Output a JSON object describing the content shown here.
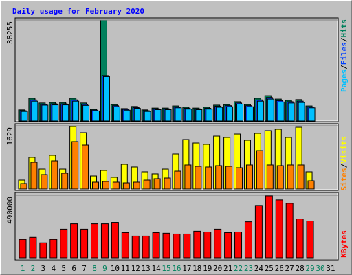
{
  "chart_data": [
    {
      "type": "bar",
      "title": "Daily usage for February 2020",
      "ylim": [
        0,
        38255
      ],
      "yticks": [
        38255
      ],
      "legend_separator": "/",
      "series": [
        {
          "name": "Hits",
          "color": "#00805c",
          "values": [
            4200,
            8600,
            6800,
            7000,
            7000,
            8600,
            6800,
            4400,
            38255,
            6200,
            4700,
            5500,
            4200,
            4900,
            4900,
            5700,
            5200,
            4900,
            5200,
            6000,
            6200,
            7300,
            6200,
            8600,
            9600,
            8300,
            7800,
            8100,
            5700,
            null,
            null
          ]
        },
        {
          "name": "Files",
          "color": "#0040ff",
          "values": [
            3900,
            8000,
            6300,
            6500,
            6500,
            8000,
            6300,
            4100,
            17200,
            5800,
            4400,
            5100,
            3900,
            4600,
            4600,
            5300,
            4800,
            4600,
            4800,
            5600,
            5800,
            6800,
            5800,
            8000,
            8900,
            7700,
            7300,
            7500,
            5300,
            null,
            null
          ]
        },
        {
          "name": "Pages",
          "color": "#00c0ff",
          "values": [
            3600,
            7500,
            6000,
            6100,
            6100,
            7500,
            5900,
            3800,
            16800,
            5400,
            4100,
            4800,
            3600,
            4300,
            4300,
            5000,
            4500,
            4300,
            4500,
            5200,
            5400,
            6400,
            5400,
            7500,
            8300,
            7200,
            6800,
            7000,
            5000,
            null,
            null
          ]
        }
      ]
    },
    {
      "type": "bar",
      "ylim": [
        0,
        1629
      ],
      "yticks": [
        1629
      ],
      "legend_separator": "/",
      "series": [
        {
          "name": "Visits",
          "color": "#ffff00",
          "values": [
            230,
            815,
            513,
            868,
            513,
            1611,
            1452,
            336,
            478,
            301,
            637,
            567,
            443,
            390,
            513,
            903,
            1275,
            1186,
            1151,
            1363,
            1328,
            1416,
            1257,
            1434,
            1505,
            1540,
            1328,
            1593,
            443,
            null,
            null
          ]
        },
        {
          "name": "Sites",
          "color": "#ff8000",
          "values": [
            142,
            690,
            372,
            726,
            407,
            1222,
            1133,
            177,
            195,
            177,
            159,
            177,
            230,
            266,
            283,
            460,
            620,
            584,
            567,
            602,
            584,
            549,
            620,
            991,
            620,
            602,
            620,
            620,
            212,
            null,
            null
          ]
        }
      ]
    },
    {
      "type": "bar",
      "ylim": [
        0,
        490000
      ],
      "yticks": [
        490000
      ],
      "series": [
        {
          "name": "KBytes",
          "color": "#ff0000",
          "values": [
            143800,
            160000,
            117000,
            143800,
            224000,
            266000,
            224000,
            266000,
            266000,
            277000,
            197000,
            170000,
            170000,
            197000,
            192000,
            186000,
            186000,
            208000,
            202000,
            224000,
            197000,
            202000,
            282000,
            410000,
            485000,
            453000,
            426000,
            304000,
            288000,
            null,
            null
          ]
        }
      ],
      "categories": [
        "1",
        "2",
        "3",
        "4",
        "5",
        "6",
        "7",
        "8",
        "9",
        "10",
        "11",
        "12",
        "13",
        "14",
        "15",
        "16",
        "17",
        "18",
        "19",
        "20",
        "21",
        "22",
        "23",
        "24",
        "25",
        "26",
        "27",
        "28",
        "29",
        "30",
        "31"
      ],
      "category_colors": [
        "#00805c",
        "#00805c",
        "#000000",
        "#000000",
        "#000000",
        "#000000",
        "#000000",
        "#00805c",
        "#00805c",
        "#000000",
        "#000000",
        "#000000",
        "#000000",
        "#000000",
        "#00805c",
        "#00805c",
        "#000000",
        "#000000",
        "#000000",
        "#000000",
        "#000000",
        "#00805c",
        "#00805c",
        "#000000",
        "#000000",
        "#000000",
        "#000000",
        "#000000",
        "#00805c",
        "#00805c",
        "#000000"
      ]
    }
  ]
}
